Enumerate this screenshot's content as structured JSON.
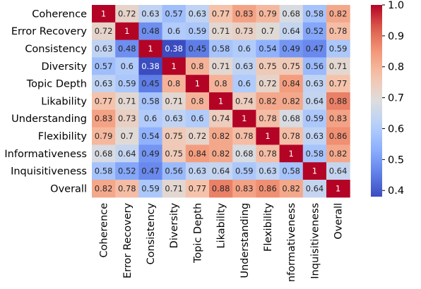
{
  "chart_data": {
    "type": "heatmap",
    "title": "",
    "xlabel": "",
    "ylabel": "",
    "rows": [
      "Coherence",
      "Error Recovery",
      "Consistency",
      "Diversity",
      "Topic Depth",
      "Likability",
      "Understanding",
      "Flexibility",
      "Informativeness",
      "Inquisitiveness",
      "Overall"
    ],
    "cols": [
      "Coherence",
      "Error Recovery",
      "Consistency",
      "Diversity",
      "Topic Depth",
      "Likability",
      "Understanding",
      "Flexibility",
      "nformativeness",
      "Inquisitiveness",
      "Overall"
    ],
    "values": [
      [
        1,
        0.72,
        0.63,
        0.57,
        0.63,
        0.77,
        0.83,
        0.79,
        0.68,
        0.58,
        0.82
      ],
      [
        0.72,
        1,
        0.48,
        0.6,
        0.59,
        0.71,
        0.73,
        0.7,
        0.64,
        0.52,
        0.78
      ],
      [
        0.63,
        0.48,
        1,
        0.38,
        0.45,
        0.58,
        0.6,
        0.54,
        0.49,
        0.47,
        0.59
      ],
      [
        0.57,
        0.6,
        0.38,
        1,
        0.8,
        0.71,
        0.63,
        0.75,
        0.75,
        0.56,
        0.71
      ],
      [
        0.63,
        0.59,
        0.45,
        0.8,
        1,
        0.8,
        0.6,
        0.72,
        0.84,
        0.63,
        0.77
      ],
      [
        0.77,
        0.71,
        0.58,
        0.71,
        0.8,
        1,
        0.74,
        0.82,
        0.82,
        0.64,
        0.88
      ],
      [
        0.83,
        0.73,
        0.6,
        0.63,
        0.6,
        0.74,
        1,
        0.78,
        0.68,
        0.59,
        0.83
      ],
      [
        0.79,
        0.7,
        0.54,
        0.75,
        0.72,
        0.82,
        0.78,
        1,
        0.78,
        0.63,
        0.86
      ],
      [
        0.68,
        0.64,
        0.49,
        0.75,
        0.84,
        0.82,
        0.68,
        0.78,
        1,
        0.58,
        0.82
      ],
      [
        0.58,
        0.52,
        0.47,
        0.56,
        0.63,
        0.64,
        0.59,
        0.63,
        0.58,
        1,
        0.64
      ],
      [
        0.82,
        0.78,
        0.59,
        0.71,
        0.77,
        0.88,
        0.83,
        0.86,
        0.82,
        0.64,
        1
      ]
    ],
    "colormap": "coolwarm",
    "vmin": 0.38,
    "vmax": 1.0,
    "colorbar_ticks": [
      0.4,
      0.5,
      0.6,
      0.7,
      0.8,
      0.9,
      1.0
    ],
    "colorbar_tick_labels": [
      "0.4",
      "0.5",
      "0.6",
      "0.7",
      "0.8",
      "0.9",
      "1.0"
    ],
    "annotated": true,
    "grid": false,
    "colorbar_position": "right"
  }
}
